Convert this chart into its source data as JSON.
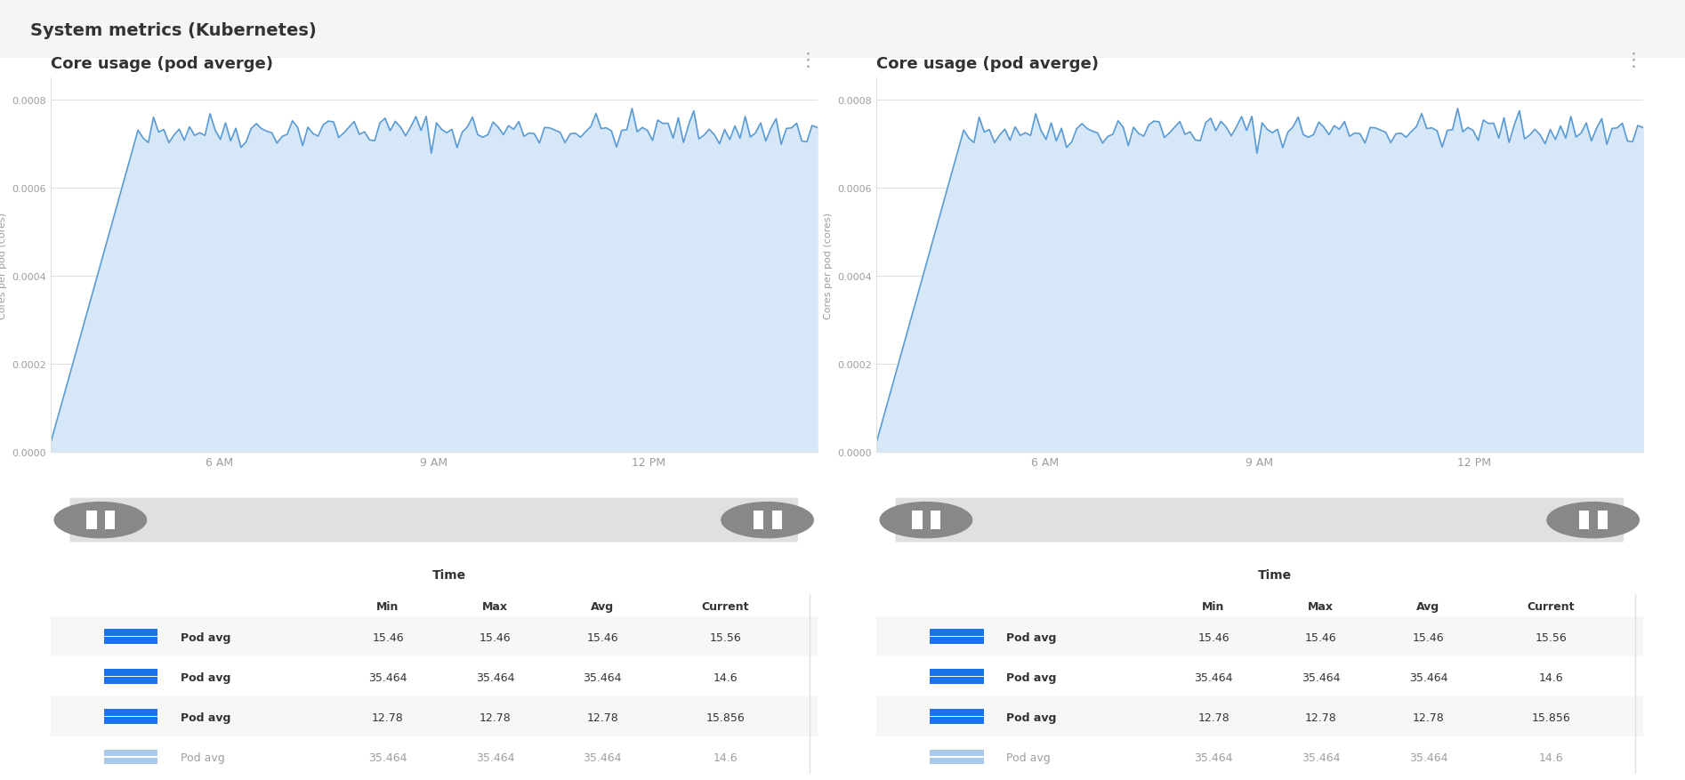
{
  "title": "System metrics (Kubernetes)",
  "panels": [
    {
      "title": "Core usage (pod averge)",
      "ylabel": "Cores per pod (cores)",
      "yticks": [
        0.0,
        0.0002,
        0.0004,
        0.0006,
        0.0008
      ],
      "xtick_labels": [
        "6 AM",
        "9 AM",
        "12 PM"
      ],
      "ymin": 0.0,
      "ymax": 0.00085
    },
    {
      "title": "Core usage (pod averge)",
      "ylabel": "Cores per pod (cores)",
      "yticks": [
        0.0,
        0.0002,
        0.0004,
        0.0006,
        0.0008
      ],
      "xtick_labels": [
        "6 AM",
        "9 AM",
        "12 PM"
      ],
      "ymin": 0.0,
      "ymax": 0.00085
    }
  ],
  "line_color": "#5b9bd5",
  "fill_color": "#d6e8f7",
  "table_rows": [
    {
      "label": "Pod avg",
      "color": "#1a73e8",
      "color2": "#5b9bd5",
      "min": "15.46",
      "max": "15.46",
      "avg": "15.46",
      "current": "15.56",
      "highlight": true,
      "faded": false
    },
    {
      "label": "Pod avg",
      "color": "#1a73e8",
      "color2": "#5b9bd5",
      "min": "35.464",
      "max": "35.464",
      "avg": "35.464",
      "current": "14.6",
      "highlight": false,
      "faded": false
    },
    {
      "label": "Pod avg",
      "color": "#1a73e8",
      "color2": "#5b9bd5",
      "min": "12.78",
      "max": "12.78",
      "avg": "12.78",
      "current": "15.856",
      "highlight": true,
      "faded": false
    },
    {
      "label": "Pod avg",
      "color": "#aac8e8",
      "color2": "#aac8e8",
      "min": "35.464",
      "max": "35.464",
      "avg": "35.464",
      "current": "14.6",
      "highlight": false,
      "faded": true
    }
  ],
  "bg_color": "#ffffff",
  "header_bg": "#f5f5f5",
  "border_color": "#e0e0e0",
  "text_color": "#333333",
  "gray_color": "#9e9e9e",
  "scrollbar_color": "#e0e0e0",
  "scrollbar_dark": "#888888"
}
